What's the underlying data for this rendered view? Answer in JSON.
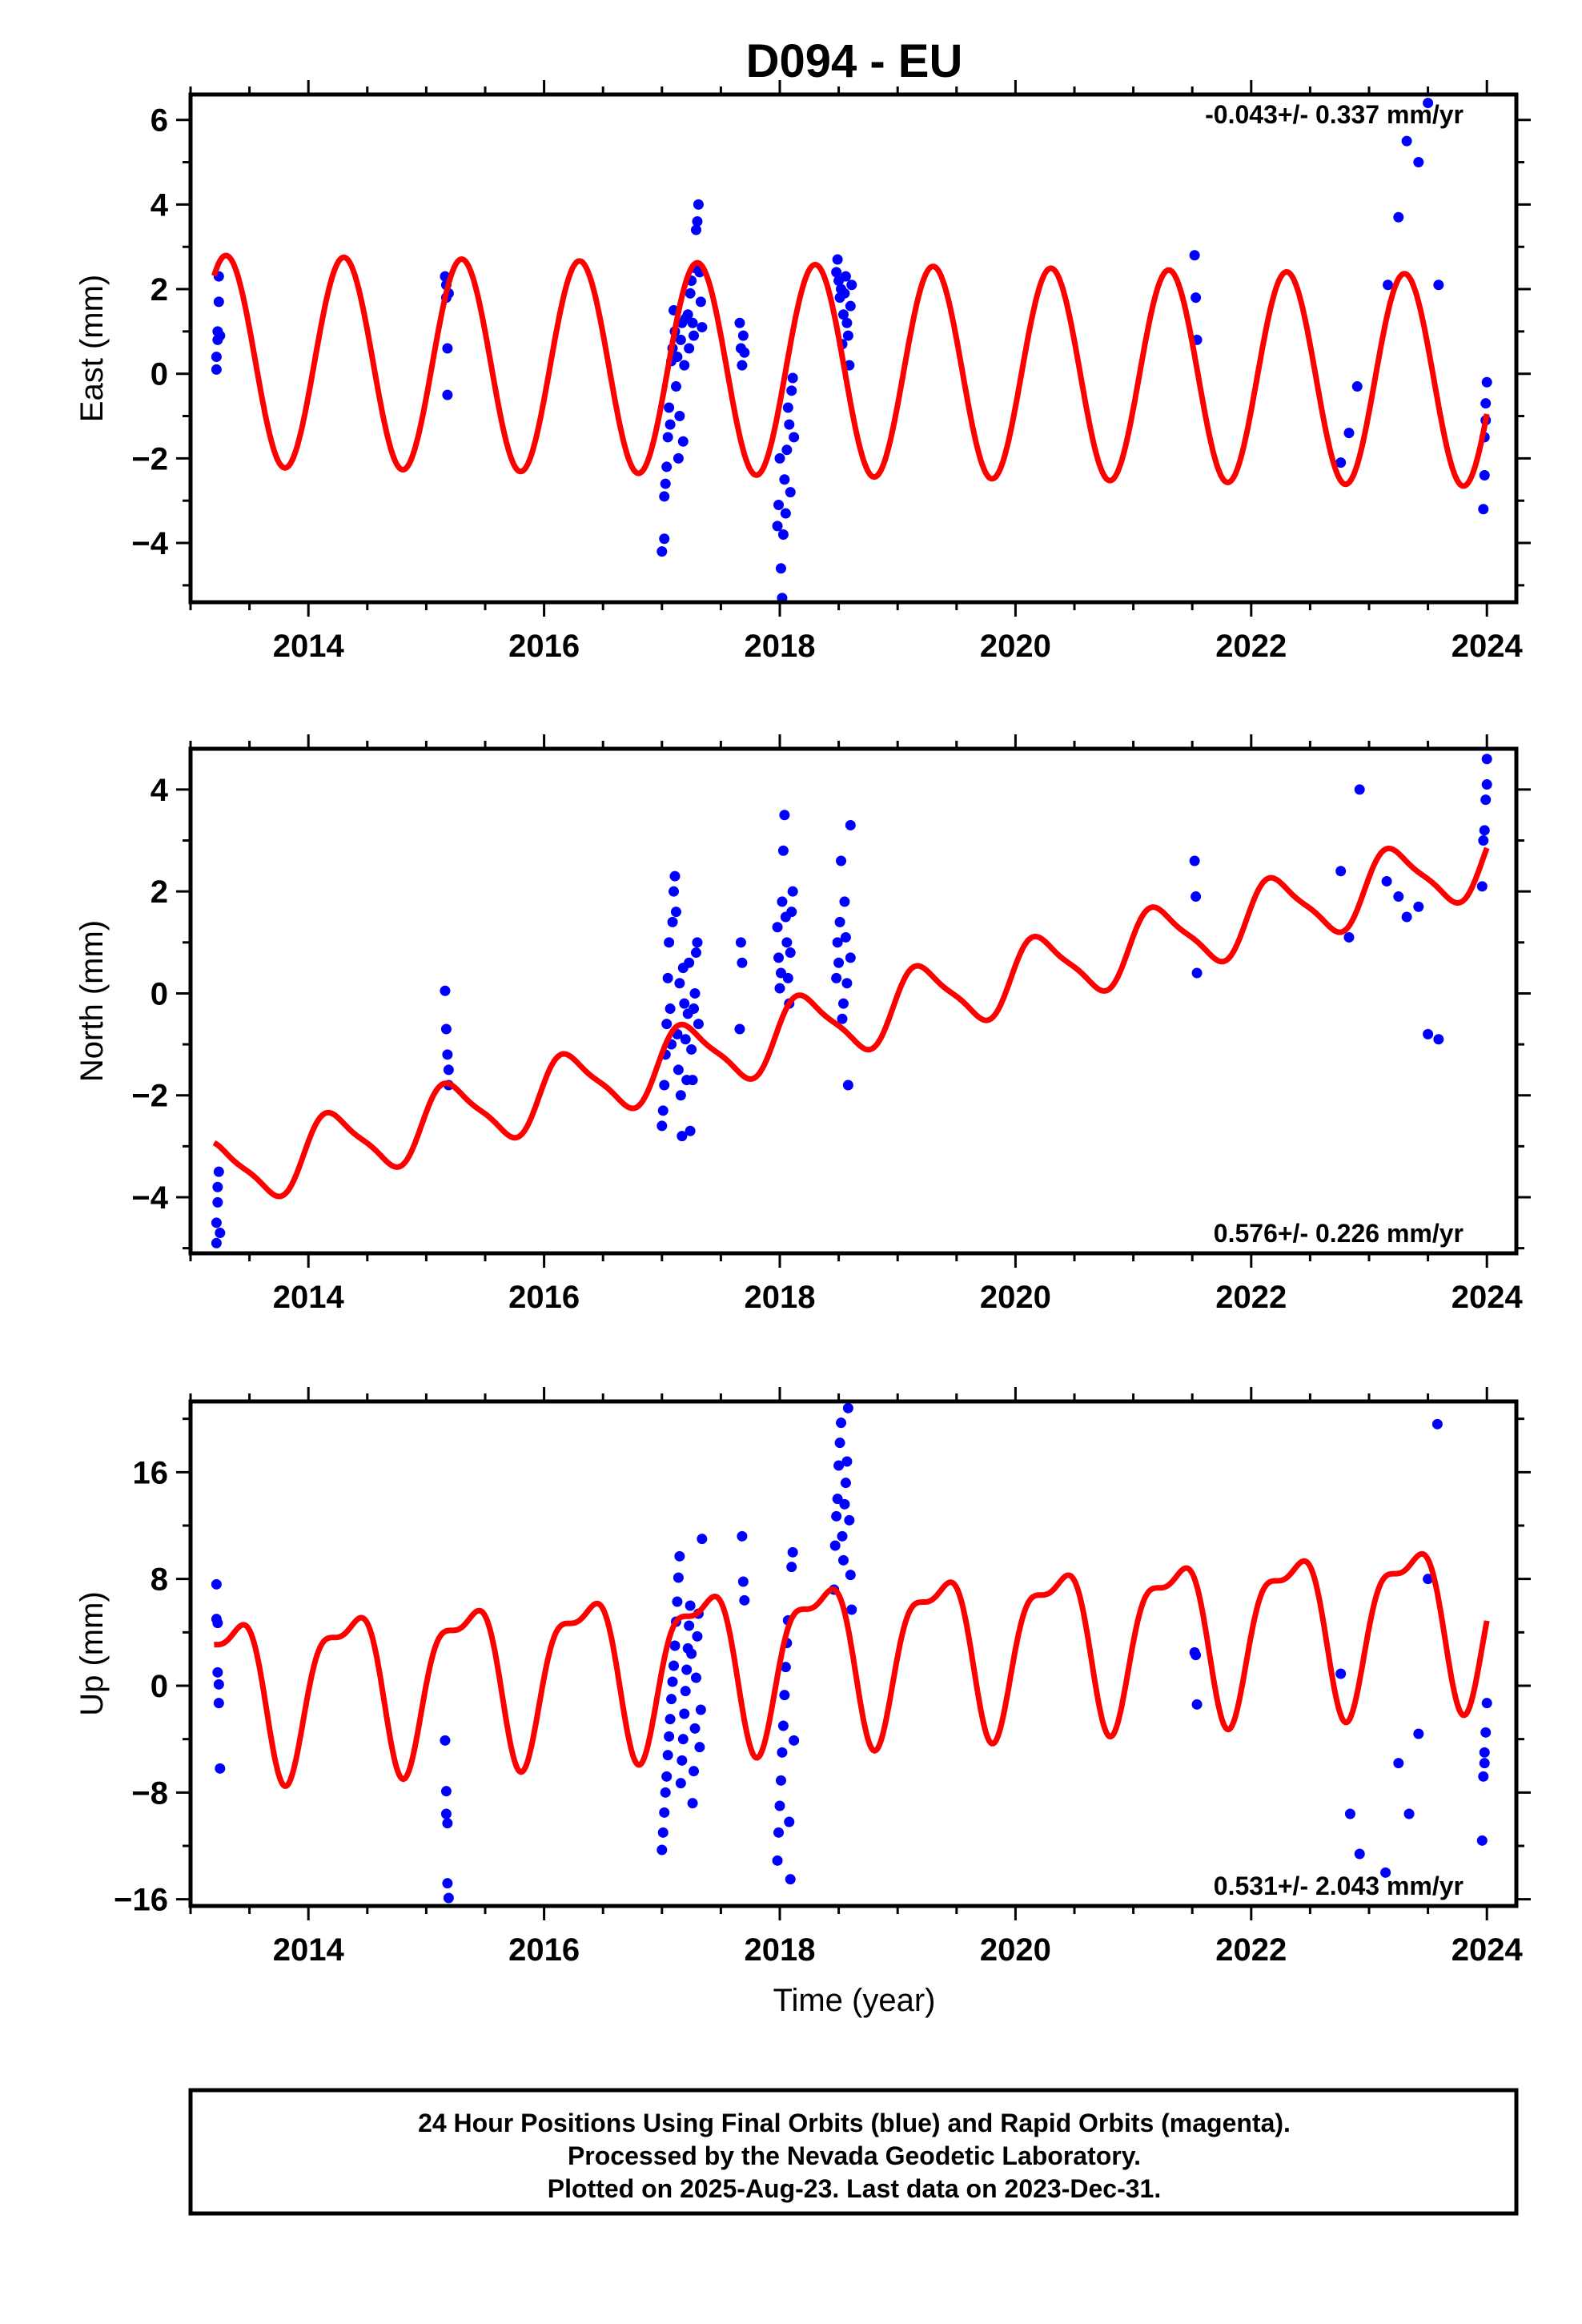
{
  "page_title": "D094 - EU",
  "x_axis_label": "Time (year)",
  "footer": {
    "lines": [
      "24 Hour Positions Using Final Orbits (blue) and Rapid Orbits (magenta).",
      "Processed by the Nevada Geodetic Laboratory.",
      "Plotted on 2025-Aug-23. Last data on 2023-Dec-31."
    ]
  },
  "colors": {
    "data_points": "#0000ff",
    "model_line": "#ff0000",
    "axes": "#000000"
  },
  "chart_data": [
    {
      "type": "scatter",
      "ylabel": "East (mm)",
      "rate_text": "-0.043+/- 0.337 mm/yr",
      "rate_position": "top-right",
      "xlim": [
        2013.0,
        2024.25
      ],
      "ylim": [
        -5.4,
        6.6
      ],
      "xticks": [
        2014,
        2016,
        2018,
        2020,
        2022,
        2024
      ],
      "xtick_labels": [
        "2014",
        "2016",
        "2018",
        "2020",
        "2022",
        "2024"
      ],
      "yticks": [
        -4,
        -2,
        0,
        2,
        4,
        6
      ],
      "ytick_labels": [
        "−4",
        "−2",
        "0",
        "2",
        "4",
        "6"
      ],
      "model": {
        "name": "",
        "offset": 0.3,
        "rate": -0.043,
        "annual_amp": 2.5,
        "annual_phase": -0.32,
        "semi_amp": 0.0,
        "semi_phase": 0.0
      },
      "points": [
        [
          2013.22,
          0.1
        ],
        [
          2013.22,
          0.4
        ],
        [
          2013.23,
          0.8
        ],
        [
          2013.23,
          1.0
        ],
        [
          2013.24,
          1.7
        ],
        [
          2013.24,
          2.3
        ],
        [
          2013.25,
          0.9
        ],
        [
          2015.16,
          2.3
        ],
        [
          2015.17,
          1.8
        ],
        [
          2015.17,
          2.1
        ],
        [
          2015.18,
          0.6
        ],
        [
          2015.18,
          -0.5
        ],
        [
          2015.19,
          1.9
        ],
        [
          2017.0,
          -4.2
        ],
        [
          2017.02,
          -3.9
        ],
        [
          2017.02,
          -2.9
        ],
        [
          2017.03,
          -2.6
        ],
        [
          2017.04,
          -2.2
        ],
        [
          2017.05,
          -1.5
        ],
        [
          2017.06,
          -0.8
        ],
        [
          2017.07,
          -1.2
        ],
        [
          2017.08,
          0.3
        ],
        [
          2017.09,
          0.6
        ],
        [
          2017.1,
          1.5
        ],
        [
          2017.11,
          1.0
        ],
        [
          2017.12,
          -0.3
        ],
        [
          2017.13,
          0.4
        ],
        [
          2017.14,
          -2.0
        ],
        [
          2017.15,
          -1.0
        ],
        [
          2017.16,
          0.8
        ],
        [
          2017.17,
          1.2
        ],
        [
          2017.18,
          -1.6
        ],
        [
          2017.19,
          0.2
        ],
        [
          2017.2,
          1.3
        ],
        [
          2017.22,
          1.4
        ],
        [
          2017.23,
          0.6
        ],
        [
          2017.24,
          1.9
        ],
        [
          2017.25,
          2.2
        ],
        [
          2017.26,
          1.2
        ],
        [
          2017.27,
          0.9
        ],
        [
          2017.28,
          2.5
        ],
        [
          2017.29,
          3.4
        ],
        [
          2017.3,
          3.6
        ],
        [
          2017.31,
          4.0
        ],
        [
          2017.32,
          2.4
        ],
        [
          2017.33,
          1.7
        ],
        [
          2017.34,
          1.1
        ],
        [
          2017.66,
          1.2
        ],
        [
          2017.67,
          0.6
        ],
        [
          2017.68,
          0.2
        ],
        [
          2017.69,
          0.9
        ],
        [
          2017.7,
          0.5
        ],
        [
          2017.98,
          -3.6
        ],
        [
          2017.99,
          -3.1
        ],
        [
          2018.0,
          -2.0
        ],
        [
          2018.01,
          -4.6
        ],
        [
          2018.02,
          -5.3
        ],
        [
          2018.03,
          -3.8
        ],
        [
          2018.04,
          -2.5
        ],
        [
          2018.05,
          -3.3
        ],
        [
          2018.06,
          -1.8
        ],
        [
          2018.07,
          -0.8
        ],
        [
          2018.08,
          -1.2
        ],
        [
          2018.09,
          -2.8
        ],
        [
          2018.1,
          -0.4
        ],
        [
          2018.11,
          -0.1
        ],
        [
          2018.12,
          -1.5
        ],
        [
          2018.48,
          2.4
        ],
        [
          2018.49,
          2.7
        ],
        [
          2018.5,
          2.2
        ],
        [
          2018.51,
          1.8
        ],
        [
          2018.52,
          2.0
        ],
        [
          2018.53,
          0.7
        ],
        [
          2018.54,
          1.4
        ],
        [
          2018.55,
          1.9
        ],
        [
          2018.56,
          2.3
        ],
        [
          2018.57,
          1.2
        ],
        [
          2018.58,
          0.9
        ],
        [
          2018.59,
          0.2
        ],
        [
          2018.6,
          1.6
        ],
        [
          2018.61,
          2.1
        ],
        [
          2021.52,
          2.8
        ],
        [
          2021.53,
          1.8
        ],
        [
          2021.54,
          0.8
        ],
        [
          2022.76,
          -2.1
        ],
        [
          2022.83,
          -1.4
        ],
        [
          2022.9,
          -0.3
        ],
        [
          2023.16,
          2.1
        ],
        [
          2023.25,
          3.7
        ],
        [
          2023.32,
          5.5
        ],
        [
          2023.42,
          5.0
        ],
        [
          2023.5,
          6.4
        ],
        [
          2023.59,
          2.1
        ],
        [
          2023.97,
          -3.2
        ],
        [
          2023.98,
          -2.4
        ],
        [
          2023.98,
          -1.5
        ],
        [
          2023.99,
          -1.1
        ],
        [
          2023.99,
          -0.7
        ],
        [
          2024.0,
          -0.2
        ]
      ]
    },
    {
      "type": "scatter",
      "ylabel": "North (mm)",
      "rate_text": "0.576+/- 0.226 mm/yr",
      "rate_position": "bottom-right",
      "xlim": [
        2013.0,
        2024.25
      ],
      "ylim": [
        -5.1,
        4.8
      ],
      "xticks": [
        2014,
        2016,
        2018,
        2020,
        2022,
        2024
      ],
      "xtick_labels": [
        "2014",
        "2016",
        "2018",
        "2020",
        "2022",
        "2024"
      ],
      "yticks": [
        -4,
        -2,
        0,
        2,
        4
      ],
      "ytick_labels": [
        "−4",
        "−2",
        "0",
        "2",
        "4"
      ],
      "model": {
        "name": "",
        "offset": -3.6,
        "rate": 0.576,
        "annual_amp": 0.65,
        "annual_phase": 0.25,
        "semi_amp": 0.15,
        "semi_phase": 0.5
      },
      "points": [
        [
          2013.22,
          -4.9
        ],
        [
          2013.22,
          -4.5
        ],
        [
          2013.23,
          -4.1
        ],
        [
          2013.23,
          -3.8
        ],
        [
          2013.24,
          -3.5
        ],
        [
          2013.25,
          -4.7
        ],
        [
          2015.16,
          0.05
        ],
        [
          2015.17,
          -0.7
        ],
        [
          2015.18,
          -1.2
        ],
        [
          2015.19,
          -1.5
        ],
        [
          2015.19,
          -1.8
        ],
        [
          2017.0,
          -2.6
        ],
        [
          2017.01,
          -2.3
        ],
        [
          2017.02,
          -1.8
        ],
        [
          2017.03,
          -1.2
        ],
        [
          2017.04,
          -0.6
        ],
        [
          2017.05,
          0.3
        ],
        [
          2017.06,
          1.0
        ],
        [
          2017.07,
          -0.3
        ],
        [
          2017.08,
          -1.0
        ],
        [
          2017.09,
          1.4
        ],
        [
          2017.1,
          2.0
        ],
        [
          2017.11,
          2.3
        ],
        [
          2017.12,
          1.6
        ],
        [
          2017.13,
          -0.8
        ],
        [
          2017.14,
          -1.5
        ],
        [
          2017.15,
          0.2
        ],
        [
          2017.16,
          -2.0
        ],
        [
          2017.17,
          -2.8
        ],
        [
          2017.18,
          0.5
        ],
        [
          2017.19,
          -0.2
        ],
        [
          2017.2,
          -0.9
        ],
        [
          2017.21,
          -1.7
        ],
        [
          2017.22,
          -0.4
        ],
        [
          2017.23,
          0.6
        ],
        [
          2017.24,
          -2.7
        ],
        [
          2017.25,
          -1.1
        ],
        [
          2017.26,
          -1.7
        ],
        [
          2017.27,
          -0.3
        ],
        [
          2017.28,
          0.0
        ],
        [
          2017.29,
          0.8
        ],
        [
          2017.3,
          1.0
        ],
        [
          2017.31,
          -0.6
        ],
        [
          2017.66,
          -0.7
        ],
        [
          2017.67,
          1.0
        ],
        [
          2017.68,
          0.6
        ],
        [
          2017.98,
          1.3
        ],
        [
          2017.99,
          0.7
        ],
        [
          2018.0,
          0.1
        ],
        [
          2018.01,
          0.4
        ],
        [
          2018.02,
          1.8
        ],
        [
          2018.03,
          2.8
        ],
        [
          2018.04,
          3.5
        ],
        [
          2018.05,
          1.5
        ],
        [
          2018.06,
          1.0
        ],
        [
          2018.07,
          0.3
        ],
        [
          2018.08,
          -0.2
        ],
        [
          2018.09,
          0.8
        ],
        [
          2018.1,
          1.6
        ],
        [
          2018.11,
          2.0
        ],
        [
          2018.48,
          0.3
        ],
        [
          2018.49,
          1.0
        ],
        [
          2018.5,
          0.6
        ],
        [
          2018.51,
          1.4
        ],
        [
          2018.52,
          2.6
        ],
        [
          2018.53,
          -0.5
        ],
        [
          2018.54,
          -0.2
        ],
        [
          2018.55,
          1.8
        ],
        [
          2018.56,
          1.1
        ],
        [
          2018.57,
          0.2
        ],
        [
          2018.58,
          -1.8
        ],
        [
          2018.6,
          3.3
        ],
        [
          2018.6,
          0.7
        ],
        [
          2021.52,
          2.6
        ],
        [
          2021.53,
          1.9
        ],
        [
          2021.54,
          0.4
        ],
        [
          2022.76,
          2.4
        ],
        [
          2022.83,
          1.1
        ],
        [
          2022.92,
          4.0
        ],
        [
          2023.15,
          2.2
        ],
        [
          2023.25,
          1.9
        ],
        [
          2023.32,
          1.5
        ],
        [
          2023.42,
          1.7
        ],
        [
          2023.5,
          -0.8
        ],
        [
          2023.59,
          -0.9
        ],
        [
          2023.96,
          2.1
        ],
        [
          2023.97,
          3.0
        ],
        [
          2023.98,
          3.2
        ],
        [
          2023.99,
          3.8
        ],
        [
          2024.0,
          4.1
        ],
        [
          2024.0,
          4.6
        ]
      ]
    },
    {
      "type": "scatter",
      "ylabel": "Up (mm)",
      "rate_text": "0.531+/- 2.043 mm/yr",
      "rate_position": "bottom-right",
      "xlim": [
        2013.0,
        2024.25
      ],
      "ylim": [
        -16.5,
        21.3
      ],
      "xticks": [
        2014,
        2016,
        2018,
        2020,
        2022,
        2024
      ],
      "xtick_labels": [
        "2014",
        "2016",
        "2018",
        "2020",
        "2022",
        "2024"
      ],
      "yticks": [
        -16,
        -8,
        0,
        8,
        16
      ],
      "ytick_labels": [
        "−16",
        "−8",
        "0",
        "8",
        "16"
      ],
      "model": {
        "name": "",
        "offset": -0.2,
        "rate": 0.531,
        "annual_amp": 5.6,
        "annual_phase": -0.45,
        "semi_amp": 2.1,
        "semi_phase": 1.0
      },
      "points": [
        [
          2013.22,
          7.6
        ],
        [
          2013.22,
          5.0
        ],
        [
          2013.23,
          4.7
        ],
        [
          2013.23,
          1.0
        ],
        [
          2013.24,
          0.1
        ],
        [
          2013.24,
          -1.3
        ],
        [
          2013.25,
          -6.2
        ],
        [
          2015.16,
          -4.1
        ],
        [
          2015.17,
          -7.9
        ],
        [
          2015.17,
          -9.6
        ],
        [
          2015.18,
          -10.3
        ],
        [
          2015.18,
          -14.8
        ],
        [
          2015.19,
          -15.9
        ],
        [
          2017.0,
          -12.3
        ],
        [
          2017.01,
          -11.0
        ],
        [
          2017.02,
          -9.5
        ],
        [
          2017.03,
          -8.0
        ],
        [
          2017.04,
          -6.8
        ],
        [
          2017.05,
          -5.2
        ],
        [
          2017.06,
          -3.8
        ],
        [
          2017.07,
          -2.5
        ],
        [
          2017.08,
          -1.0
        ],
        [
          2017.09,
          0.3
        ],
        [
          2017.1,
          1.5
        ],
        [
          2017.11,
          3.0
        ],
        [
          2017.12,
          4.8
        ],
        [
          2017.13,
          6.3
        ],
        [
          2017.14,
          8.1
        ],
        [
          2017.15,
          9.7
        ],
        [
          2017.16,
          -7.3
        ],
        [
          2017.17,
          -5.6
        ],
        [
          2017.18,
          -4.0
        ],
        [
          2017.19,
          -2.1
        ],
        [
          2017.2,
          -0.4
        ],
        [
          2017.21,
          1.2
        ],
        [
          2017.22,
          2.8
        ],
        [
          2017.23,
          4.5
        ],
        [
          2017.24,
          6.0
        ],
        [
          2017.25,
          2.4
        ],
        [
          2017.26,
          -8.8
        ],
        [
          2017.27,
          -6.4
        ],
        [
          2017.28,
          -3.2
        ],
        [
          2017.29,
          0.6
        ],
        [
          2017.3,
          3.7
        ],
        [
          2017.31,
          5.4
        ],
        [
          2017.32,
          -4.6
        ],
        [
          2017.33,
          -1.8
        ],
        [
          2017.34,
          11.0
        ],
        [
          2017.68,
          11.2
        ],
        [
          2017.69,
          7.8
        ],
        [
          2017.7,
          6.4
        ],
        [
          2017.98,
          -13.1
        ],
        [
          2017.99,
          -11.0
        ],
        [
          2018.0,
          -9.0
        ],
        [
          2018.01,
          -7.1
        ],
        [
          2018.02,
          -5.0
        ],
        [
          2018.03,
          -3.0
        ],
        [
          2018.04,
          -0.7
        ],
        [
          2018.05,
          1.4
        ],
        [
          2018.06,
          3.2
        ],
        [
          2018.07,
          4.9
        ],
        [
          2018.08,
          -10.2
        ],
        [
          2018.09,
          -14.5
        ],
        [
          2018.1,
          8.9
        ],
        [
          2018.11,
          10.0
        ],
        [
          2018.12,
          -4.1
        ],
        [
          2018.46,
          7.2
        ],
        [
          2018.47,
          10.5
        ],
        [
          2018.48,
          12.7
        ],
        [
          2018.49,
          14.0
        ],
        [
          2018.5,
          16.5
        ],
        [
          2018.51,
          18.2
        ],
        [
          2018.52,
          19.7
        ],
        [
          2018.53,
          11.2
        ],
        [
          2018.54,
          9.4
        ],
        [
          2018.55,
          13.6
        ],
        [
          2018.56,
          15.2
        ],
        [
          2018.57,
          16.8
        ],
        [
          2018.58,
          20.8
        ],
        [
          2018.59,
          12.4
        ],
        [
          2018.6,
          8.3
        ],
        [
          2018.61,
          5.7
        ],
        [
          2021.52,
          2.5
        ],
        [
          2021.53,
          2.3
        ],
        [
          2021.54,
          -1.4
        ],
        [
          2022.76,
          0.9
        ],
        [
          2022.84,
          -9.6
        ],
        [
          2022.92,
          -12.6
        ],
        [
          2023.14,
          -14.0
        ],
        [
          2023.25,
          -5.8
        ],
        [
          2023.34,
          -9.6
        ],
        [
          2023.42,
          -3.6
        ],
        [
          2023.5,
          8.0
        ],
        [
          2023.58,
          19.6
        ],
        [
          2023.96,
          -11.6
        ],
        [
          2023.97,
          -6.8
        ],
        [
          2023.98,
          -5.8
        ],
        [
          2023.98,
          -5.0
        ],
        [
          2023.99,
          -3.5
        ],
        [
          2024.0,
          -1.3
        ]
      ]
    }
  ]
}
